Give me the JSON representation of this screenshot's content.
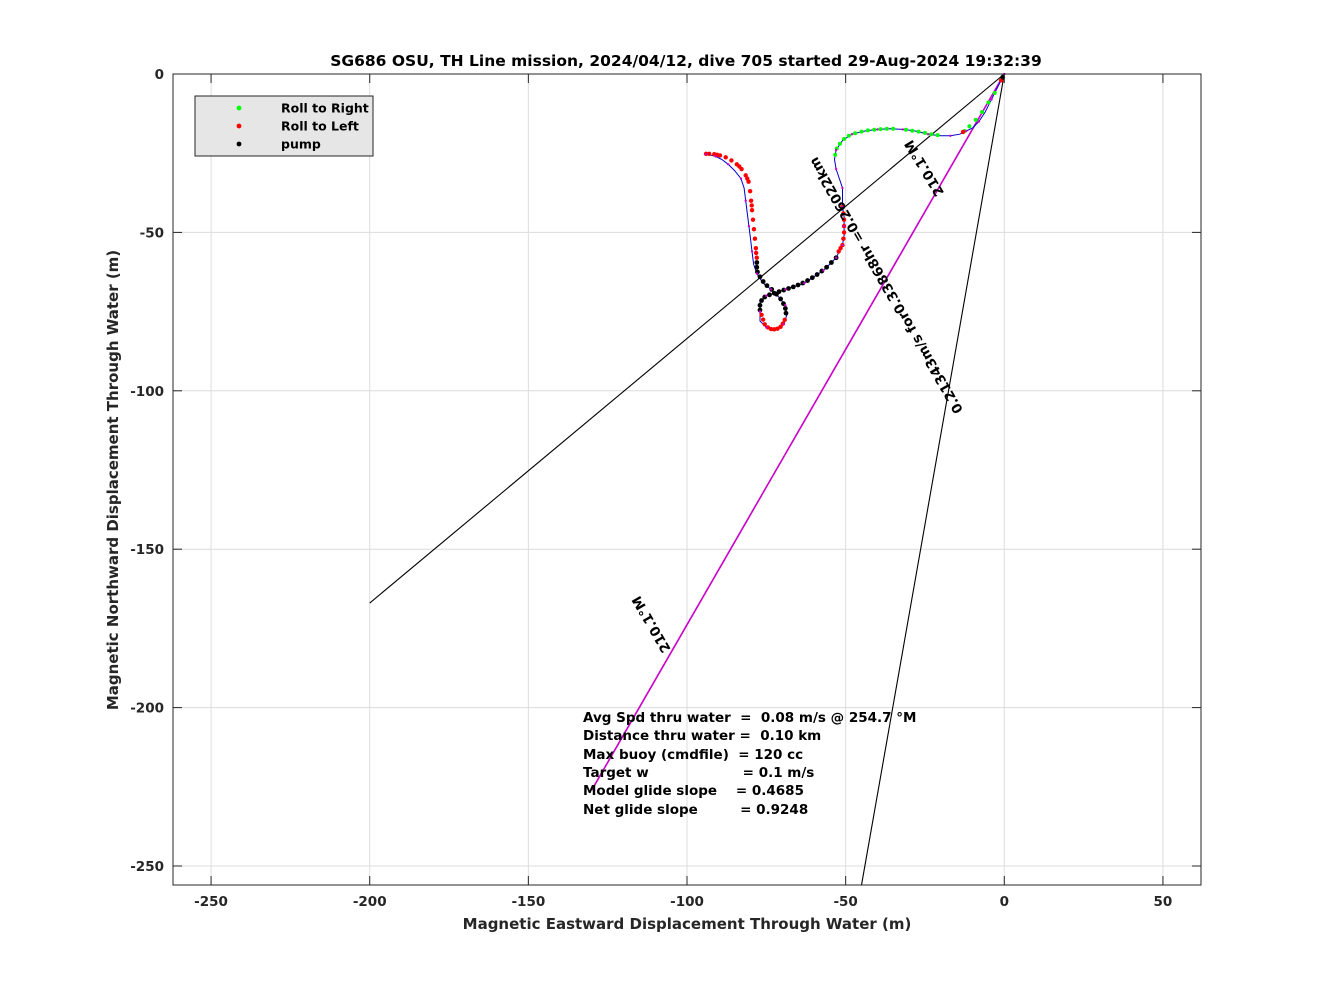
{
  "chart_data": {
    "type": "scatter",
    "title": "SG686 OSU, TH Line mission, 2024/04/12, dive 705 started 29-Aug-2024 19:32:39",
    "xlabel": "Magnetic Eastward Displacement Through Water (m)",
    "ylabel": "Magnetic Northward Displacement Through Water (m)",
    "xlim": [
      -262,
      62
    ],
    "ylim": [
      -256,
      0
    ],
    "xticks": [
      -250,
      -200,
      -150,
      -100,
      -50,
      0,
      50
    ],
    "yticks": [
      0,
      -50,
      -100,
      -150,
      -200,
      -250
    ],
    "xtick_labels": [
      "-250",
      "-200",
      "-150",
      "-100",
      "-50",
      "0",
      "50"
    ],
    "ytick_labels": [
      "0",
      "-50",
      "-100",
      "-150",
      "-200",
      "-250"
    ],
    "grid": true,
    "legend": {
      "placement": "top-left",
      "entries": [
        {
          "name": "Roll to Right",
          "color": "#00ff00"
        },
        {
          "name": "Roll to Left",
          "color": "#ff0000"
        },
        {
          "name": "pump",
          "color": "#000000"
        }
      ]
    },
    "track": {
      "name": "dive track",
      "color": "#0000cc",
      "points": [
        [
          0,
          0
        ],
        [
          -2,
          -4
        ],
        [
          -4,
          -8
        ],
        [
          -6,
          -12
        ],
        [
          -8,
          -15
        ],
        [
          -10,
          -17
        ],
        [
          -12,
          -18
        ],
        [
          -14,
          -19
        ],
        [
          -17,
          -19.5
        ],
        [
          -20,
          -19.5
        ],
        [
          -24,
          -19
        ],
        [
          -28,
          -18
        ],
        [
          -32,
          -17.5
        ],
        [
          -36,
          -17.3
        ],
        [
          -40,
          -17.5
        ],
        [
          -44,
          -18
        ],
        [
          -48,
          -19
        ],
        [
          -51,
          -21
        ],
        [
          -53,
          -24
        ],
        [
          -53.5,
          -27
        ],
        [
          -53,
          -30
        ],
        [
          -52,
          -33
        ],
        [
          -51,
          -36
        ],
        [
          -51,
          -39
        ],
        [
          -51,
          -42
        ],
        [
          -50.5,
          -45
        ],
        [
          -50.5,
          -48
        ],
        [
          -50.5,
          -51
        ],
        [
          -51,
          -54
        ],
        [
          -52,
          -56
        ],
        [
          -53,
          -58
        ],
        [
          -55,
          -60
        ],
        [
          -57,
          -62
        ],
        [
          -60,
          -64
        ],
        [
          -63,
          -66
        ],
        [
          -66,
          -67
        ],
        [
          -69,
          -68
        ],
        [
          -72,
          -69
        ],
        [
          -75,
          -70
        ],
        [
          -77,
          -72
        ],
        [
          -77,
          -75
        ],
        [
          -77,
          -78
        ],
        [
          -75,
          -80
        ],
        [
          -72,
          -80.5
        ],
        [
          -69.5,
          -79
        ],
        [
          -68.5,
          -76
        ],
        [
          -69,
          -73
        ],
        [
          -71,
          -70.5
        ],
        [
          -73.5,
          -68
        ],
        [
          -76,
          -66
        ],
        [
          -78,
          -63
        ],
        [
          -79,
          -60
        ],
        [
          -79.5,
          -56
        ],
        [
          -80,
          -52
        ],
        [
          -80.5,
          -48
        ],
        [
          -81,
          -44
        ],
        [
          -81.5,
          -40
        ],
        [
          -82,
          -36
        ],
        [
          -83,
          -33
        ],
        [
          -85,
          -30.5
        ],
        [
          -87,
          -28.5
        ],
        [
          -89,
          -27
        ],
        [
          -91,
          -26
        ],
        [
          -93,
          -25.5
        ],
        [
          -94,
          -25.3
        ]
      ]
    },
    "points": {
      "roll_right": [
        [
          -3,
          -6
        ],
        [
          -5,
          -9
        ],
        [
          -7,
          -12
        ],
        [
          -9,
          -14.5
        ],
        [
          -11,
          -16.5
        ],
        [
          -12.5,
          -18
        ],
        [
          -35,
          -17.3
        ],
        [
          -37,
          -17.3
        ],
        [
          -39,
          -17.4
        ],
        [
          -41,
          -17.6
        ],
        [
          -43,
          -17.8
        ],
        [
          -45,
          -18.2
        ],
        [
          -47,
          -18.7
        ],
        [
          -49,
          -19.5
        ],
        [
          -50.5,
          -20.5
        ],
        [
          -51.8,
          -22
        ],
        [
          -52.8,
          -23.5
        ],
        [
          -53.3,
          -25.5
        ],
        [
          -31,
          -17.6
        ],
        [
          -29,
          -17.9
        ],
        [
          -27,
          -18.2
        ],
        [
          -25,
          -18.6
        ],
        [
          -23,
          -19
        ],
        [
          -21,
          -19.3
        ]
      ],
      "roll_left": [
        [
          -1,
          -2
        ],
        [
          -13,
          -18.3
        ],
        [
          -51,
          -42
        ],
        [
          -50.7,
          -44
        ],
        [
          -50.5,
          -46
        ],
        [
          -50.5,
          -48
        ],
        [
          -50.5,
          -50
        ],
        [
          -50.7,
          -52
        ],
        [
          -51,
          -54
        ],
        [
          -51.6,
          -55
        ],
        [
          -52.2,
          -56
        ],
        [
          -76.5,
          -76
        ],
        [
          -76,
          -77.5
        ],
        [
          -75.5,
          -79
        ],
        [
          -74.5,
          -80
        ],
        [
          -73.5,
          -80.5
        ],
        [
          -72.5,
          -80.6
        ],
        [
          -71.5,
          -80.4
        ],
        [
          -70.5,
          -79.8
        ],
        [
          -69.8,
          -78.8
        ],
        [
          -69.2,
          -77.6
        ],
        [
          -78,
          -58
        ],
        [
          -78.3,
          -55
        ],
        [
          -78.6,
          -52
        ],
        [
          -78.9,
          -49
        ],
        [
          -79.2,
          -46
        ],
        [
          -79.5,
          -43
        ],
        [
          -79.8,
          -40
        ],
        [
          -80.1,
          -37
        ],
        [
          -80.6,
          -34
        ],
        [
          -81.5,
          -32
        ],
        [
          -82.8,
          -30
        ],
        [
          -84.3,
          -28.5
        ],
        [
          -86,
          -27.3
        ],
        [
          -87.8,
          -26.3
        ],
        [
          -89.6,
          -25.7
        ],
        [
          -91.4,
          -25.3
        ],
        [
          -93,
          -25.2
        ],
        [
          -94,
          -25.2
        ],
        [
          -78.2,
          -56.5
        ],
        [
          -79.6,
          -41.5
        ],
        [
          -83.5,
          -29.2
        ],
        [
          -81,
          -33
        ],
        [
          -90.5,
          -25.5
        ]
      ],
      "pump": [
        [
          -0.5,
          -1
        ],
        [
          -53,
          -58
        ],
        [
          -54.5,
          -59.5
        ],
        [
          -56,
          -61
        ],
        [
          -57.5,
          -62.2
        ],
        [
          -59,
          -63.3
        ],
        [
          -60.5,
          -64.3
        ],
        [
          -62,
          -65.2
        ],
        [
          -63.5,
          -66
        ],
        [
          -65,
          -66.6
        ],
        [
          -66.5,
          -67.2
        ],
        [
          -68,
          -67.7
        ],
        [
          -69.5,
          -68.2
        ],
        [
          -71,
          -68.7
        ],
        [
          -72.5,
          -69.2
        ],
        [
          -74,
          -69.7
        ],
        [
          -75.5,
          -70.4
        ],
        [
          -76.5,
          -71.5
        ],
        [
          -77,
          -73
        ],
        [
          -77,
          -74.5
        ],
        [
          -68.8,
          -75.5
        ],
        [
          -69,
          -74
        ],
        [
          -69.6,
          -72.5
        ],
        [
          -70.5,
          -71
        ],
        [
          -71.8,
          -69.5
        ],
        [
          -73.3,
          -68
        ],
        [
          -74.8,
          -66.8
        ],
        [
          -76,
          -65.5
        ],
        [
          -77,
          -64
        ],
        [
          -77.8,
          -62.5
        ],
        [
          -78,
          -61
        ],
        [
          -78,
          -59.5
        ]
      ]
    },
    "lines": [
      {
        "name": "heading-line-1",
        "color": "#000000",
        "from": [
          0,
          0
        ],
        "to": [
          -200,
          -167
        ]
      },
      {
        "name": "heading-line-2",
        "color": "#000000",
        "from": [
          0,
          0
        ],
        "to": [
          -45,
          -256
        ]
      },
      {
        "name": "current-line",
        "color": "#000000",
        "from": [
          0,
          0
        ],
        "to": [
          -130,
          -226
        ]
      },
      {
        "name": "current-line-overlay",
        "color": "#cc00cc",
        "from": [
          0,
          0
        ],
        "to": [
          -130,
          -226
        ]
      }
    ],
    "annotations": [
      {
        "text": "210.1°M",
        "x": -24,
        "y": -29,
        "angle": 239
      },
      {
        "text": "0.21343m/s for0.33868hr =0.26022km",
        "x": -36,
        "y": -66,
        "angle": 240
      },
      {
        "text": "210.1°M",
        "x": -110,
        "y": -173,
        "angle": 240
      }
    ],
    "stats": [
      "Avg Spd thru water  =  0.08 m/s @ 254.7 °M",
      "Distance thru water =  0.10 km",
      "Max buoy (cmdfile)  = 120 cc",
      "Target w                    = 0.1 m/s",
      "Model glide slope    = 0.4685",
      "Net glide slope         = 0.9248"
    ]
  }
}
